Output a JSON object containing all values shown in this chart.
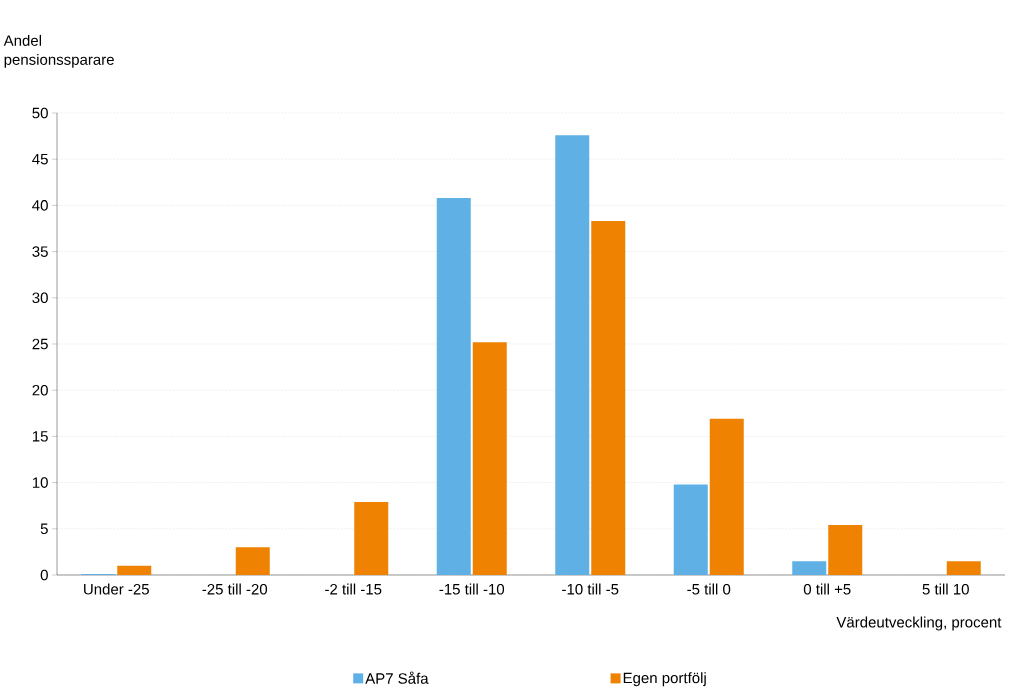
{
  "chart_data": {
    "type": "bar",
    "ylabel": "Andel pensionssparare",
    "xlabel": "Värdeutveckling, procent",
    "categories": [
      "Under -25",
      "-25 till -20",
      "-2 till -15",
      "-15 till -10",
      "-10 till -5",
      "-5 till 0",
      "0 till +5",
      "5 till 10"
    ],
    "series": [
      {
        "name": "AP7 Såfa",
        "color": "#5eb0e5",
        "values": [
          0.1,
          0,
          0,
          40.8,
          47.6,
          9.8,
          1.5,
          0
        ]
      },
      {
        "name": "Egen portfölj",
        "color": "#ef8200",
        "values": [
          1.0,
          3.0,
          7.9,
          25.2,
          38.3,
          16.9,
          5.4,
          1.5
        ]
      }
    ],
    "ylim": [
      0,
      50
    ],
    "yticks": [
      0,
      5,
      10,
      15,
      20,
      25,
      30,
      35,
      40,
      45,
      50
    ],
    "grid": "y",
    "legend": "bottom"
  }
}
